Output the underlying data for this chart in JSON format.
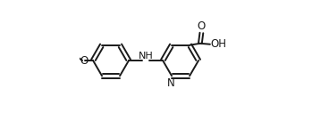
{
  "background_color": "#ffffff",
  "line_color": "#1a1a1a",
  "text_color": "#1a1a1a",
  "line_width": 1.4,
  "font_size": 8.5,
  "figsize": [
    3.68,
    1.36
  ],
  "dpi": 100,
  "xlim": [
    0.0,
    1.0
  ],
  "ylim": [
    0.05,
    0.75
  ]
}
